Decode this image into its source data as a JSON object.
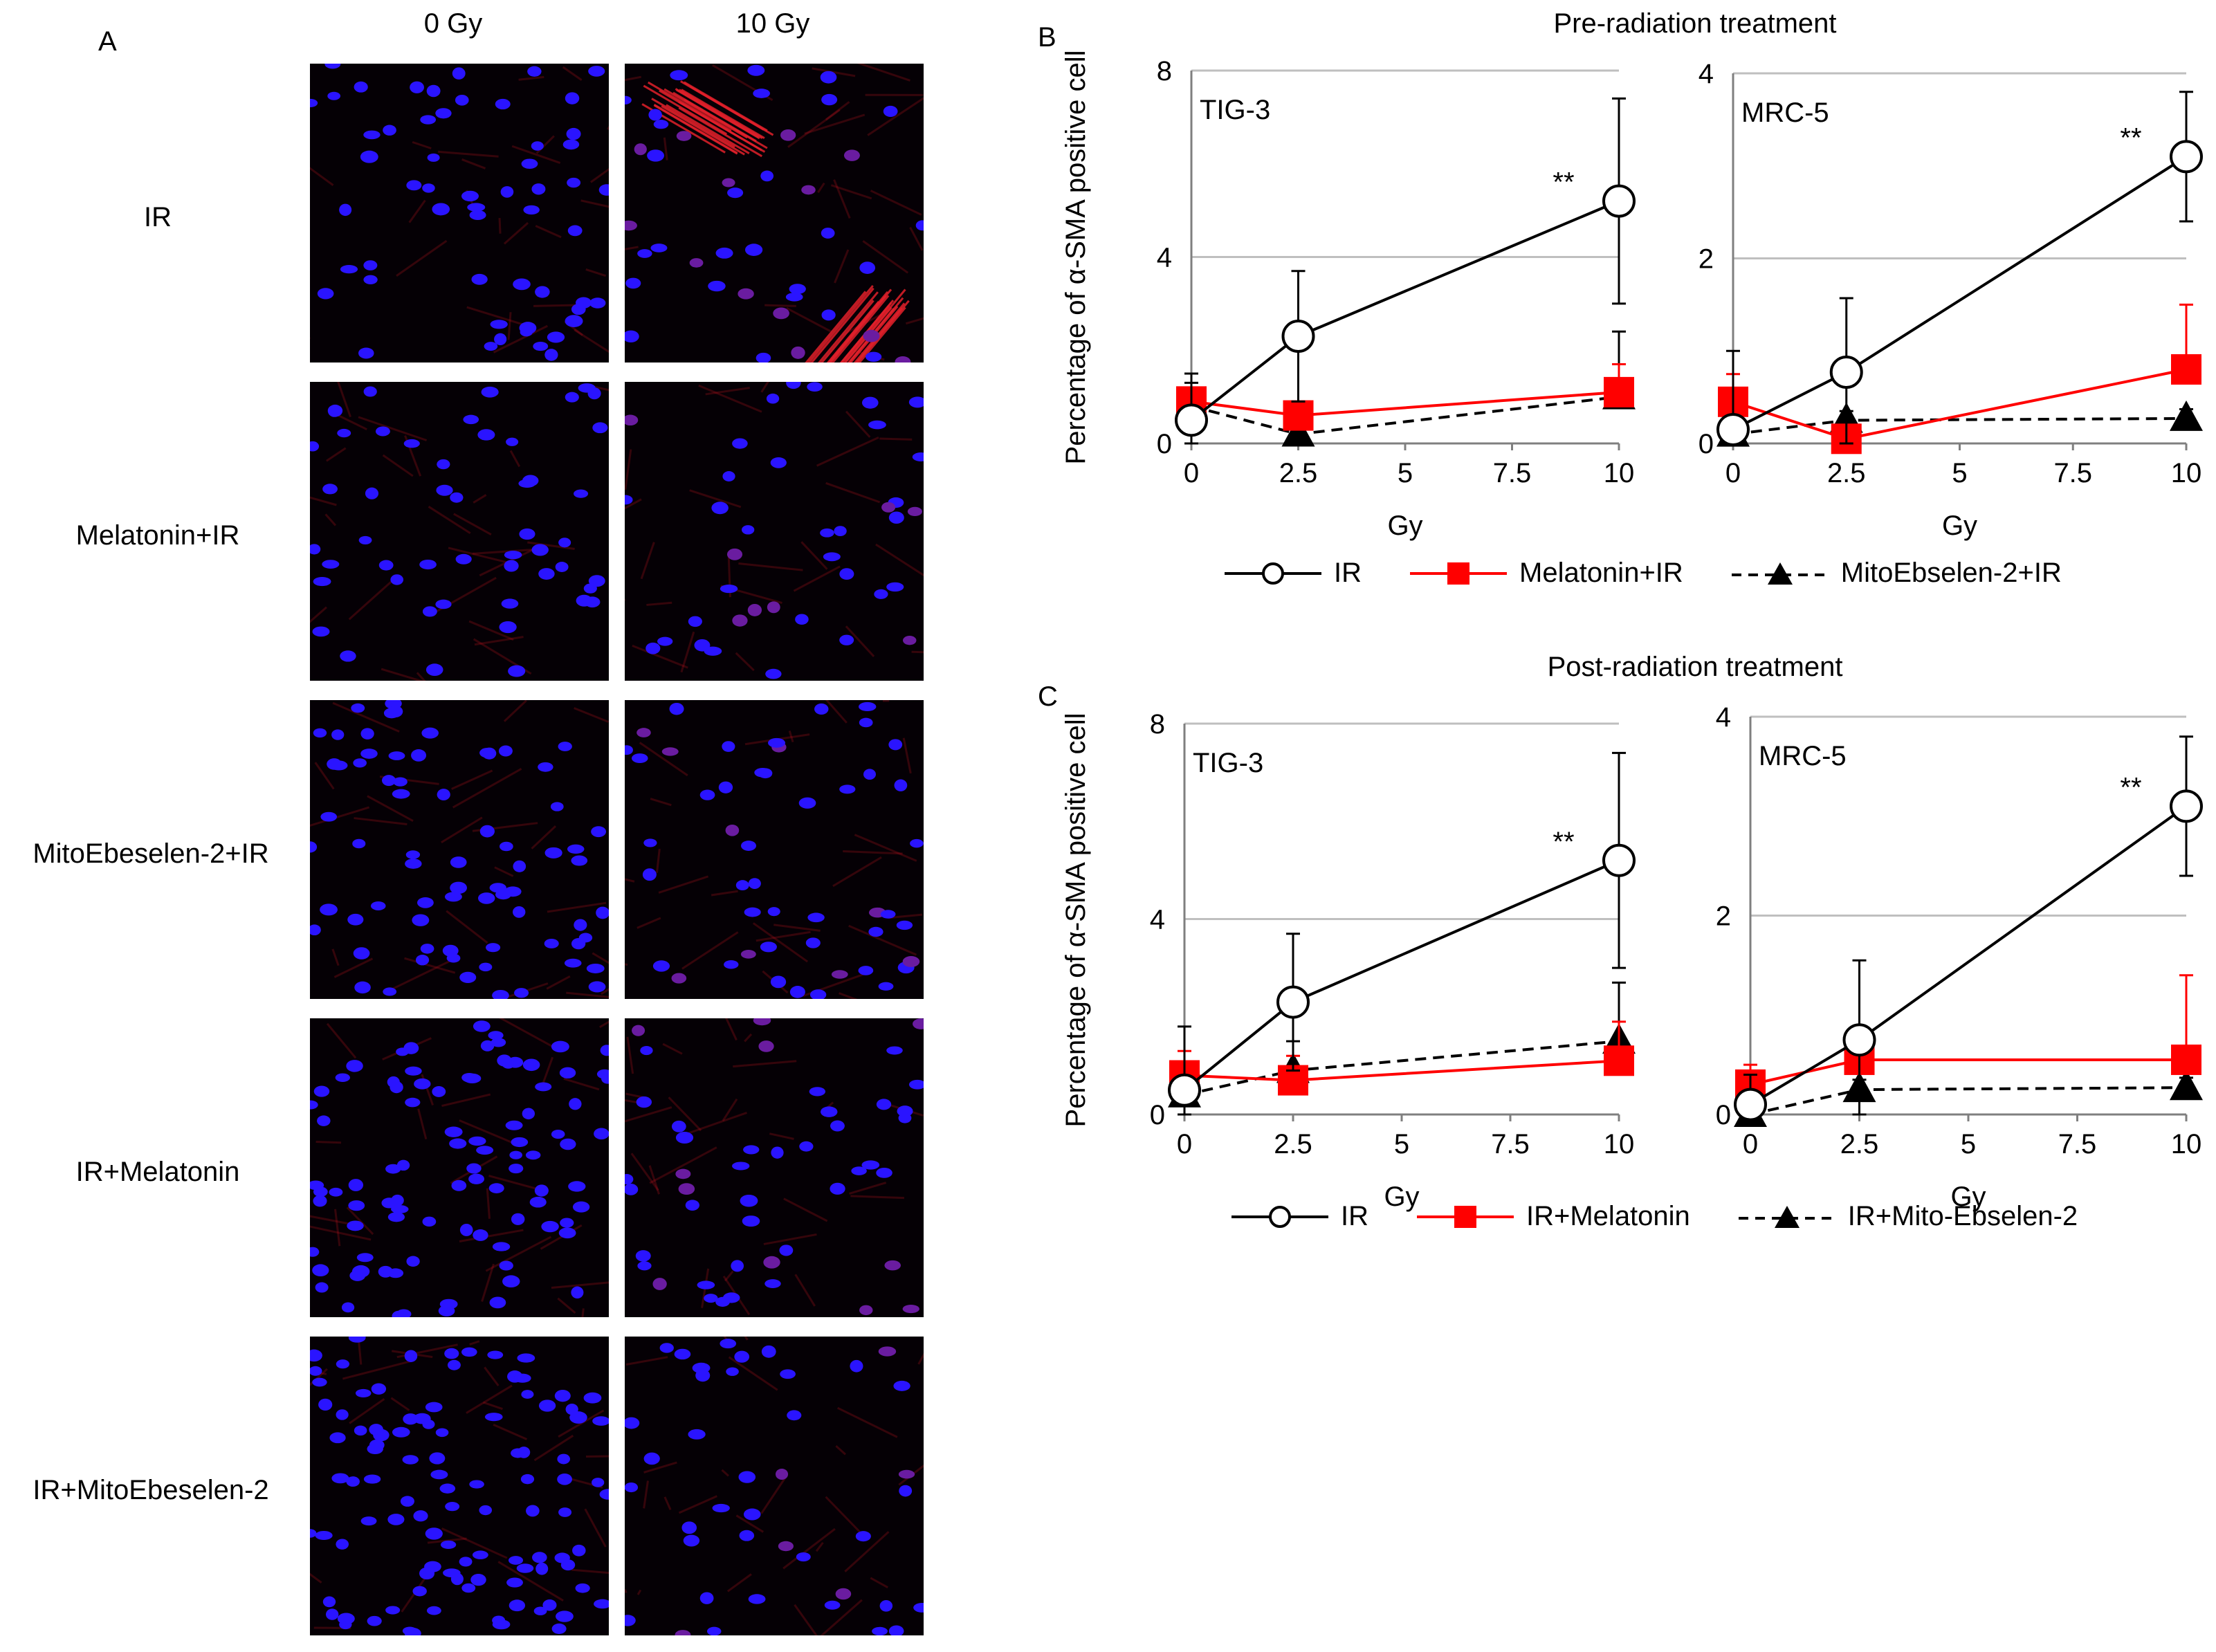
{
  "panel_labels": {
    "a": "A",
    "b": "B",
    "c": "C"
  },
  "panel_a": {
    "columns": [
      "0 Gy",
      "10 Gy"
    ],
    "rows": [
      "IR",
      "Melatonin+IR",
      "MitoEbeselen-2+IR",
      "IR+Melatonin",
      "IR+MitoEbeselen-2"
    ]
  },
  "colors": {
    "ir": "#000000",
    "melatonin": "#ff0000",
    "mito": "#000000",
    "grid": "#bfbfbf",
    "nuclei": "#2a14ff",
    "actin": "#c8141e"
  },
  "chart_data": [
    {
      "type": "line",
      "panel": "B",
      "group_title": "Pre-radiation treatment",
      "cell_line": "TIG-3",
      "ylabel": "Percentage of α-SMA positive cell",
      "xlabel": "Gy",
      "x": [
        0,
        2.5,
        10
      ],
      "xticks": [
        "0",
        "2.5",
        "5",
        "7.5",
        "10"
      ],
      "ylim": [
        0,
        8
      ],
      "yticks": [
        "0",
        "4",
        "8"
      ],
      "annotation": {
        "text": "**",
        "x": 10
      },
      "series": [
        {
          "name": "IR",
          "values": [
            0.5,
            2.3,
            5.2
          ],
          "errors": [
            1.0,
            1.4,
            2.2
          ],
          "style": "open-circle-solid"
        },
        {
          "name": "Melatonin+IR",
          "values": [
            0.9,
            0.6,
            1.1
          ],
          "errors": [
            0.6,
            0.2,
            0.6
          ],
          "style": "red-square-solid"
        },
        {
          "name": "MitoEbselen-2+IR",
          "values": [
            0.8,
            0.2,
            1.0
          ],
          "errors": [
            0.5,
            0.2,
            1.4
          ],
          "style": "black-triangle-dashed"
        }
      ]
    },
    {
      "type": "line",
      "panel": "B",
      "group_title": "Pre-radiation treatment",
      "cell_line": "MRC-5",
      "ylabel": "",
      "xlabel": "Gy",
      "x": [
        0,
        2.5,
        10
      ],
      "xticks": [
        "0",
        "2.5",
        "5",
        "7.5",
        "10"
      ],
      "ylim": [
        0,
        4
      ],
      "yticks": [
        "0",
        "2",
        "4"
      ],
      "annotation": {
        "text": "**",
        "x": 10
      },
      "series": [
        {
          "name": "IR",
          "values": [
            0.15,
            0.77,
            3.1
          ],
          "errors": [
            0.85,
            0.8,
            0.7
          ],
          "style": "open-circle-solid"
        },
        {
          "name": "Melatonin+IR",
          "values": [
            0.45,
            0.05,
            0.8
          ],
          "errors": [
            0.3,
            0.05,
            0.7
          ],
          "style": "red-square-solid"
        },
        {
          "name": "MitoEbselen-2+IR",
          "values": [
            0.1,
            0.25,
            0.27
          ],
          "errors": [
            0.1,
            0.1,
            0.1
          ],
          "style": "black-triangle-dashed"
        }
      ]
    },
    {
      "type": "line",
      "panel": "C",
      "group_title": "Post-radiation treatment",
      "cell_line": "TIG-3",
      "ylabel": "Percentage of α-SMA positive cell",
      "xlabel": "Gy",
      "x": [
        0,
        2.5,
        10
      ],
      "xticks": [
        "0",
        "2.5",
        "5",
        "7.5",
        "10"
      ],
      "ylim": [
        0,
        8
      ],
      "yticks": [
        "0",
        "4",
        "8"
      ],
      "annotation": {
        "text": "**",
        "x": 10
      },
      "series": [
        {
          "name": "IR",
          "values": [
            0.5,
            2.3,
            5.2
          ],
          "errors": [
            1.3,
            1.4,
            2.2
          ],
          "style": "open-circle-solid"
        },
        {
          "name": "IR+Melatonin",
          "values": [
            0.8,
            0.7,
            1.1
          ],
          "errors": [
            0.5,
            0.5,
            0.8
          ],
          "style": "red-square-solid"
        },
        {
          "name": "IR+Mito-Ebselen-2",
          "values": [
            0.4,
            0.9,
            1.5
          ],
          "errors": [
            0.3,
            0.6,
            1.2
          ],
          "style": "black-triangle-dashed"
        }
      ]
    },
    {
      "type": "line",
      "panel": "C",
      "group_title": "Post-radiation treatment",
      "cell_line": "MRC-5",
      "ylabel": "",
      "xlabel": "Gy",
      "x": [
        0,
        2.5,
        10
      ],
      "xticks": [
        "0",
        "2.5",
        "5",
        "7.5",
        "10"
      ],
      "ylim": [
        0,
        4
      ],
      "yticks": [
        "0",
        "2",
        "4"
      ],
      "annotation": {
        "text": "**",
        "x": 10
      },
      "series": [
        {
          "name": "IR",
          "values": [
            0.1,
            0.75,
            3.1
          ],
          "errors": [
            0.3,
            0.8,
            0.7
          ],
          "style": "open-circle-solid"
        },
        {
          "name": "IR+Melatonin",
          "values": [
            0.3,
            0.55,
            0.55
          ],
          "errors": [
            0.2,
            0.2,
            0.85
          ],
          "style": "red-square-solid"
        },
        {
          "name": "IR+Mito-Ebselen-2",
          "values": [
            0.0,
            0.25,
            0.27
          ],
          "errors": [
            0.05,
            0.1,
            0.1
          ],
          "style": "black-triangle-dashed"
        }
      ]
    }
  ],
  "legends": {
    "B": [
      "IR",
      "Melatonin+IR",
      "MitoEbselen-2+IR"
    ],
    "C": [
      "IR",
      "IR+Melatonin",
      "IR+Mito-Ebselen-2"
    ]
  }
}
